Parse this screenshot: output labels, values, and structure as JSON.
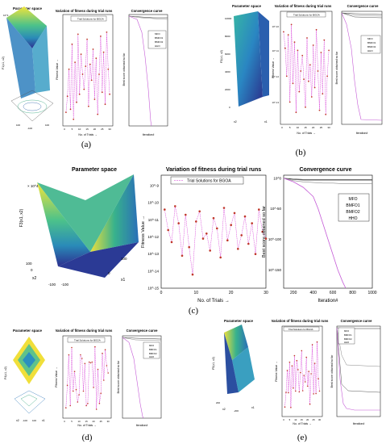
{
  "panels": [
    {
      "label": "(a)",
      "titles": {
        "param": "Parameter space",
        "fit": "Variation of fitness during trial runs",
        "conv": "Convergence curve"
      },
      "param": {
        "zlabel": "F1(x1, x2)",
        "exp": "10^4",
        "ticks": [
          "100",
          "-100",
          "100"
        ],
        "xlab": "x2",
        "ylab": "x1"
      },
      "fit": {
        "legend": "Trial Solutions for BGOA",
        "ylabel": "Fitness Value →",
        "xlabel": "No. of Trials →",
        "xticks": [
          "0",
          "5",
          "10",
          "15",
          "20",
          "25",
          "30"
        ],
        "yticks": []
      },
      "conv": {
        "legend": [
          "MFO",
          "BMFO1",
          "BMFO2",
          "HHO"
        ],
        "ylabel": "Best score obtained so far",
        "xlabel": "Iteration#",
        "xticks": [
          "200",
          "400",
          "600",
          "800",
          "1000"
        ],
        "yticks": []
      }
    },
    {
      "label": "(b)",
      "titles": {
        "param": "Parameter space",
        "fit": "Variation of fitness during trial runs",
        "conv": "Convergence curve"
      },
      "param": {
        "zlabel": "F2(x1, x2)",
        "exp": "",
        "ticks": [
          "10000",
          "8000",
          "6000",
          "4000",
          "2000",
          "0"
        ],
        "xlab": "x2",
        "ylab": "x1"
      },
      "fit": {
        "legend": "Trial Solutions for BGOA",
        "ylabel": "Fitness Value →",
        "xlabel": "No. of Trials →",
        "xticks": [
          "0",
          "5",
          "10",
          "15",
          "20",
          "25",
          "30"
        ],
        "yticks": [
          "10^-10",
          "10^-11",
          "10^-12",
          "10^-13"
        ]
      },
      "conv": {
        "legend": [
          "MFO",
          "BMFO1",
          "BMFO2",
          "HHO"
        ],
        "ylabel": "Best score obtained so far",
        "xlabel": "Iteration#",
        "xticks": [
          "200",
          "400",
          "600",
          "800",
          "1000"
        ],
        "yticks": []
      }
    },
    {
      "label": "(c)",
      "titles": {
        "param": "Parameter space",
        "fit": "Variation of fitness during trial runs",
        "conv": "Convergence curve"
      },
      "param": {
        "zlabel": "F3(x1, x2)",
        "exp": "× 10^4",
        "ticks": [
          "100",
          "0",
          "-100",
          "-100",
          "0",
          "100"
        ],
        "xlab": "x2",
        "ylab": "x1"
      },
      "fit": {
        "legend": "Trial Solutions for BGOA",
        "ylabel": "Fitness Value →",
        "xlabel": "No. of Trials →",
        "xticks": [
          "0",
          "10",
          "20",
          "30"
        ],
        "yticks": [
          "10^-9",
          "10^-10",
          "10^-11",
          "10^-12",
          "10^-13",
          "10^-14",
          "10^-15"
        ]
      },
      "conv": {
        "legend": [
          "MFO",
          "BMFO1",
          "BMFO2",
          "HHO"
        ],
        "ylabel": "Best score obtained so far",
        "xlabel": "Iteration#",
        "xticks": [
          "200",
          "400",
          "600",
          "800",
          "1000"
        ],
        "yticks": [
          "10^0",
          "10^-50",
          "10^-100",
          "10^-150"
        ]
      }
    },
    {
      "label": "(d)",
      "titles": {
        "param": "Parameter space",
        "fit": "Variation of fitness during trial runs",
        "conv": "Convergence curve"
      },
      "param": {
        "zlabel": "F4(x1, x2)",
        "exp": "",
        "ticks": [
          "-100",
          "100"
        ],
        "xlab": "x2",
        "ylab": "x1"
      },
      "fit": {
        "legend": "Trial Solutions for BGOA",
        "ylabel": "Fitness Value →",
        "xlabel": "No. of Trials →",
        "xticks": [
          "0",
          "5",
          "10",
          "15",
          "20",
          "25",
          "30"
        ],
        "yticks": []
      },
      "conv": {
        "legend": [
          "MFO",
          "BMFO1",
          "BMFO2",
          "HHO"
        ],
        "ylabel": "Best score obtained so far",
        "xlabel": "Iteration#",
        "xticks": [
          "200",
          "400",
          "600",
          "800",
          "1000"
        ],
        "yticks": []
      }
    },
    {
      "label": "(e)",
      "titles": {
        "param": "Parameter space",
        "fit": "Variation of fitness during trial runs",
        "conv": "Convergence curve"
      },
      "param": {
        "zlabel": "F5(x1, x2)",
        "exp": "",
        "ticks": [
          "200",
          "-200"
        ],
        "xlab": "x2",
        "ylab": "x1"
      },
      "fit": {
        "legend": "Trial Solutions for BGOA",
        "ylabel": "Fitness Value →",
        "xlabel": "No. of Trials →",
        "xticks": [
          "0",
          "5",
          "10",
          "15",
          "20",
          "25",
          "30"
        ],
        "yticks": []
      },
      "conv": {
        "legend": [
          "MFO",
          "BMFO1",
          "BMFO2",
          "HHO"
        ],
        "ylabel": "Best score obtained so far",
        "xlabel": "Iteration#",
        "xticks": [
          "200",
          "400",
          "600",
          "800",
          "1000"
        ],
        "yticks": []
      }
    }
  ],
  "chart_data": [
    {
      "type": "line",
      "panel": "(a)",
      "title": "Variation of fitness during trial runs",
      "xlabel": "No. of Trials →",
      "ylabel": "Fitness Value →",
      "xlim": [
        0,
        30
      ],
      "series": [
        {
          "name": "Trial Solutions for BGOA",
          "x": [
            1,
            2,
            3,
            4,
            5,
            6,
            7,
            8,
            9,
            10,
            11,
            12,
            13,
            14,
            15,
            16,
            17,
            18,
            19,
            20,
            21,
            22,
            23,
            24,
            25,
            26,
            27,
            28,
            29,
            30
          ],
          "y": [
            0.12,
            0.28,
            0.55,
            0.15,
            0.8,
            0.05,
            0.62,
            0.22,
            0.9,
            0.3,
            0.7,
            0.5,
            0.35,
            0.58,
            0.85,
            0.18,
            0.6,
            0.44,
            0.75,
            0.25,
            0.66,
            0.1,
            0.5,
            0.88,
            0.32,
            0.72,
            0.2,
            0.92,
            0.55,
            0.3
          ]
        }
      ]
    },
    {
      "type": "line",
      "panel": "(c)",
      "title": "Variation of fitness during trial runs",
      "xlabel": "No. of Trials →",
      "ylabel": "Fitness Value →",
      "xlim": [
        0,
        30
      ],
      "ylim": [
        -15,
        -9
      ],
      "yscale": "log10",
      "series": [
        {
          "name": "Trial Solutions for BGOA",
          "x": [
            1,
            2,
            3,
            4,
            5,
            6,
            7,
            8,
            9,
            10,
            11,
            12,
            13,
            14,
            15,
            16,
            17,
            18,
            19,
            20,
            21,
            22,
            23,
            24,
            25,
            26,
            27,
            28,
            29,
            30
          ],
          "y": [
            -10.4,
            -11.6,
            -12.3,
            -10.2,
            -11.2,
            -13.1,
            -10.7,
            -12.6,
            -14.2,
            -11.1,
            -10.5,
            -12.1,
            -11.8,
            -12.8,
            -10.9,
            -11.5,
            -13.2,
            -10.3,
            -12.2,
            -11.3,
            -10.6,
            -12.7,
            -11.9,
            -10.8,
            -12.4,
            -11.2,
            -13.0,
            -10.4,
            -11.7,
            -12.1
          ]
        }
      ]
    },
    {
      "type": "line",
      "panel": "(c)",
      "title": "Convergence curve",
      "xlabel": "Iteration#",
      "ylabel": "Best score obtained so far",
      "xlim": [
        100,
        1000
      ],
      "ylim": [
        -180,
        5
      ],
      "yscale": "log10",
      "legend_position": "right",
      "series": [
        {
          "name": "MFO",
          "color": "#2b2b2b",
          "x": [
            100,
            200,
            300,
            400,
            500,
            600,
            700,
            800,
            900,
            1000
          ],
          "y": [
            0,
            -2,
            -3,
            -3,
            -3,
            -3,
            -3,
            -3,
            -3,
            -3
          ]
        },
        {
          "name": "BMFO1",
          "color": "#8c8c8c",
          "x": [
            100,
            200,
            300,
            400,
            500,
            600,
            700,
            800,
            900,
            1000
          ],
          "y": [
            0,
            -4,
            -6,
            -7,
            -8,
            -8,
            -9,
            -9,
            -9,
            -9
          ]
        },
        {
          "name": "BMFO2",
          "color": "#5a5a5a",
          "x": [
            100,
            200,
            300,
            400,
            500,
            600,
            700,
            800,
            900,
            1000
          ],
          "y": [
            0,
            -1,
            -2,
            -2,
            -2,
            -2,
            -2,
            -2,
            -2,
            -2
          ]
        },
        {
          "name": "HHO",
          "color": "#c45ad6",
          "x": [
            100,
            200,
            300,
            400,
            450,
            500,
            550,
            600,
            650,
            700,
            730
          ],
          "y": [
            0,
            -6,
            -15,
            -30,
            -50,
            -75,
            -100,
            -125,
            -150,
            -170,
            -180
          ]
        }
      ]
    }
  ],
  "colors": {
    "trial_line": "#d63ad6",
    "trial_marker": "#c0392b",
    "hho": "#c45ad6",
    "frame": "#000000"
  }
}
